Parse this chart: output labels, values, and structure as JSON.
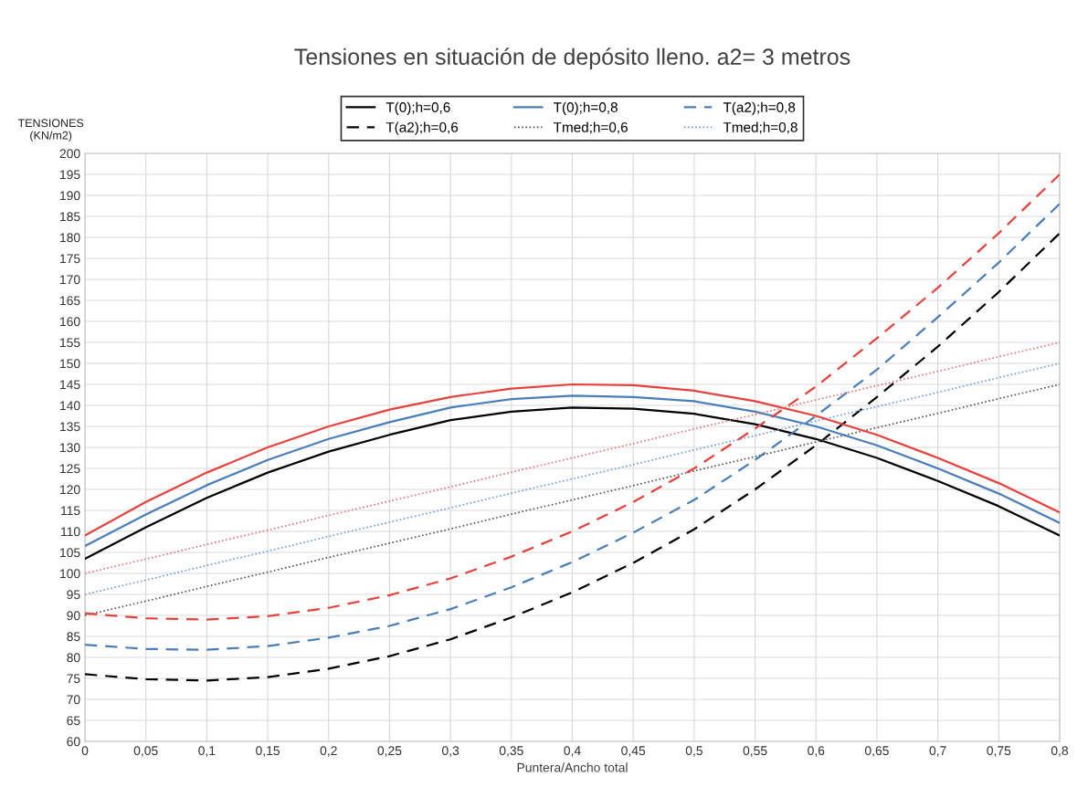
{
  "chart_data": {
    "type": "line",
    "title": "Tensiones en situación de depósito lleno. a2= 3 metros",
    "xlabel": "Puntera/Ancho total",
    "ylabel": "TENSIONES\n(KN/m2)",
    "x": [
      0,
      0.05,
      0.1,
      0.15,
      0.2,
      0.25,
      0.3,
      0.35,
      0.4,
      0.45,
      0.5,
      0.55,
      0.6,
      0.65,
      0.7,
      0.75,
      0.8
    ],
    "series": [
      {
        "name": "T(0);h=0,6",
        "color": "#000000",
        "line_style": "solid",
        "values": [
          103.5,
          111,
          118,
          124,
          129,
          133,
          136.5,
          138.5,
          139.5,
          139.2,
          138,
          135.5,
          132,
          127.5,
          122,
          116,
          109
        ]
      },
      {
        "name": "T(0);h=0,8",
        "color": "#4a7ebb",
        "line_style": "solid",
        "values": [
          106.5,
          114,
          121,
          127,
          132,
          136,
          139.5,
          141.5,
          142.3,
          142,
          141,
          138.5,
          135,
          130.5,
          125,
          119,
          112
        ]
      },
      {
        "name": "T(a2);h=0,8",
        "color": "#4a7ebb",
        "line_style": "dashed",
        "values": [
          83,
          82,
          81.8,
          82.7,
          84.7,
          87.5,
          91.5,
          96.7,
          102.7,
          109.7,
          117.5,
          127,
          137.5,
          148.5,
          161,
          174,
          188
        ]
      },
      {
        "name": "T(a2);h=0,6",
        "color": "#000000",
        "line_style": "dashed",
        "values": [
          76,
          74.8,
          74.5,
          75.3,
          77.3,
          80.3,
          84.3,
          89.5,
          95.5,
          102.5,
          110.5,
          120,
          130.5,
          142,
          154,
          167,
          181
        ]
      },
      {
        "name": "Tmed;h=0,6",
        "color": "#555555",
        "line_style": "dotted",
        "values": [
          90,
          93.4,
          96.9,
          100.3,
          103.8,
          107.2,
          110.6,
          114.1,
          117.5,
          120.9,
          124.4,
          127.8,
          131.3,
          134.7,
          138.1,
          141.6,
          145
        ]
      },
      {
        "name": "Tmed;h=0,8",
        "color": "#6a9fe0",
        "line_style": "dotted",
        "values": [
          95,
          98.4,
          101.9,
          105.3,
          108.8,
          112.2,
          115.6,
          119.1,
          122.5,
          125.9,
          129.4,
          132.8,
          136.3,
          139.7,
          143.1,
          146.6,
          150
        ]
      },
      {
        "color": "#e8413c",
        "line_style": "solid",
        "values": [
          109,
          117,
          124,
          130,
          135,
          139,
          142,
          144,
          145,
          144.8,
          143.5,
          141,
          137.5,
          133,
          127.5,
          121.5,
          114.5
        ]
      },
      {
        "color": "#e8413c",
        "line_style": "dashed",
        "values": [
          90.5,
          89.3,
          89,
          89.8,
          91.8,
          94.8,
          98.8,
          104,
          110,
          117,
          125,
          134.5,
          144.5,
          156,
          168,
          181,
          195
        ]
      },
      {
        "color": "#f07070",
        "line_style": "dotted",
        "values": [
          100,
          103.4,
          106.9,
          110.3,
          113.8,
          117.2,
          120.6,
          124.1,
          127.5,
          130.9,
          134.4,
          137.8,
          141.3,
          144.7,
          148.1,
          151.6,
          155
        ]
      }
    ],
    "xlim": [
      0,
      0.8
    ],
    "ylim": [
      60,
      200
    ],
    "xticks": [
      0,
      {
        "value": 0.05,
        "label": "0,05"
      },
      {
        "value": 0.1,
        "label": "0,1"
      },
      {
        "value": 0.15,
        "label": "0,15"
      },
      {
        "value": 0.2,
        "label": "0,2"
      },
      {
        "value": 0.25,
        "label": "0,25"
      },
      {
        "value": 0.3,
        "label": "0,3"
      },
      {
        "value": 0.35,
        "label": "0,35"
      },
      {
        "value": 0.4,
        "label": "0,4"
      },
      {
        "value": 0.45,
        "label": "0,45"
      },
      {
        "value": 0.5,
        "label": "0,5"
      },
      {
        "value": 0.55,
        "label": "0,55"
      },
      {
        "value": 0.6,
        "label": "0,6"
      },
      {
        "value": 0.65,
        "label": "0,65"
      },
      {
        "value": 0.7,
        "label": "0,7"
      },
      {
        "value": 0.75,
        "label": "0,75"
      },
      {
        "value": 0.8,
        "label": "0,8"
      }
    ],
    "yticks": [
      60,
      65,
      70,
      75,
      80,
      85,
      90,
      95,
      100,
      105,
      110,
      115,
      120,
      125,
      130,
      135,
      140,
      145,
      150,
      155,
      160,
      165,
      170,
      175,
      180,
      185,
      190,
      195,
      200
    ],
    "grid": true,
    "legend": "top",
    "marker": "none"
  }
}
